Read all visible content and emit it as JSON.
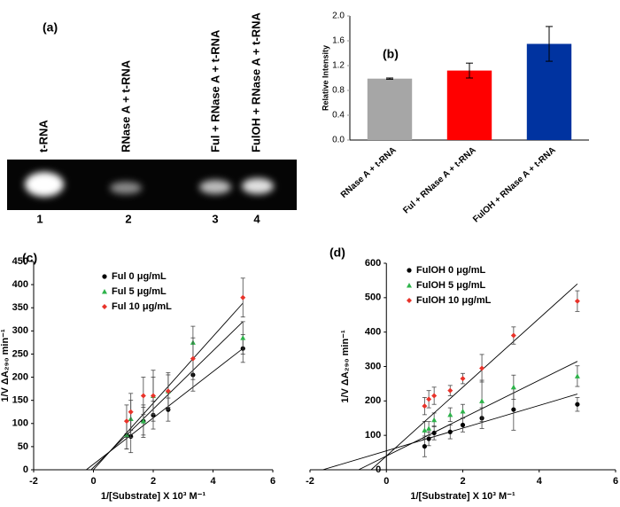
{
  "gel": {
    "label": "(a)",
    "lanes": [
      {
        "name": "t-RNA",
        "number": "1"
      },
      {
        "name": "RNase A + t-RNA",
        "number": "2"
      },
      {
        "name": "Ful + RNase A + t-RNA",
        "number": "3"
      },
      {
        "name": "FulOH + RNase A + t-RNA",
        "number": "4"
      }
    ]
  },
  "chart_data": [
    {
      "type": "bar",
      "label": "(b)",
      "ylabel": "Relative Intensity",
      "categories": [
        "RNase A + t-RNA",
        "Ful + RNase A + t-RNA",
        "FulOH + RNase A + t-RNA"
      ],
      "values": [
        0.99,
        1.12,
        1.55
      ],
      "errors": [
        0.01,
        0.12,
        0.28
      ],
      "colors": [
        "#a6a6a6",
        "#ff0000",
        "#0033a0"
      ],
      "ylim": [
        0,
        2
      ],
      "yticks": [
        {
          "value": 0,
          "label": "0.0"
        },
        0.4,
        0.8,
        1.2,
        1.6,
        {
          "value": 2,
          "label": "2.0"
        }
      ]
    },
    {
      "type": "scatter",
      "label": "(c)",
      "xlabel": "1/[Substrate] X 10³ M⁻¹",
      "ylabel": "1/V ΔA₂₉₀ min⁻¹",
      "xlim": [
        -2,
        6
      ],
      "xticks": [
        -2,
        0,
        2,
        4,
        6
      ],
      "ylim": [
        0,
        450
      ],
      "yticks": [
        0,
        50,
        100,
        150,
        200,
        250,
        300,
        350,
        400,
        450
      ],
      "y_axis_crosses": -2,
      "legend": "upper left",
      "x": [
        1.11,
        1.25,
        1.67,
        2.0,
        2.5,
        3.33,
        5.0
      ],
      "series": [
        {
          "name": "Ful 0 μg/mL",
          "color": "#000000",
          "marker": "circle",
          "values": [
            75,
            72,
            105,
            118,
            130,
            205,
            262
          ],
          "errors": [
            30,
            35,
            30,
            30,
            25,
            35,
            30
          ],
          "fit": {
            "slope": 50,
            "intercept": 12
          }
        },
        {
          "name": "Ful 5 μg/mL",
          "color": "#2db34a",
          "marker": "triangle",
          "values": [
            75,
            110,
            105,
            160,
            170,
            275,
            285
          ],
          "errors": [
            30,
            40,
            35,
            40,
            35,
            35,
            35
          ],
          "fit": {
            "slope": 63,
            "intercept": 5
          }
        },
        {
          "name": "Ful 10 μg/mL",
          "color": "#e8332a",
          "marker": "diamond",
          "values": [
            105,
            125,
            160,
            160,
            170,
            240,
            372
          ],
          "errors": [
            35,
            40,
            40,
            55,
            40,
            45,
            42
          ],
          "fit": {
            "slope": 72,
            "intercept": 0
          }
        }
      ]
    },
    {
      "type": "scatter",
      "label": "(d)",
      "xlabel": "1/[Substrate] X 10³ M⁻¹",
      "ylabel": "1/V ΔA₂₉₀ min⁻¹",
      "xlim": [
        -2,
        6
      ],
      "xticks": [
        -2,
        0,
        2,
        4,
        6
      ],
      "ylim": [
        0,
        600
      ],
      "yticks": [
        0,
        100,
        200,
        300,
        400,
        500,
        600
      ],
      "y_axis_crosses": 0,
      "legend": "upper left",
      "x": [
        1.0,
        1.11,
        1.25,
        1.67,
        2.0,
        2.5,
        3.33,
        5.0
      ],
      "series": [
        {
          "name": "FulOH 0 μg/mL",
          "color": "#000000",
          "marker": "circle",
          "values": [
            68,
            90,
            107,
            110,
            130,
            150,
            175,
            190
          ],
          "errors": [
            30,
            20,
            20,
            20,
            20,
            30,
            60,
            20
          ],
          "fit": {
            "slope": 33,
            "intercept": 55
          }
        },
        {
          "name": "FulOH 5 μg/mL",
          "color": "#2db34a",
          "marker": "triangle",
          "values": [
            115,
            120,
            145,
            160,
            170,
            200,
            240,
            272
          ],
          "errors": [
            25,
            20,
            20,
            20,
            20,
            60,
            35,
            30
          ],
          "fit": {
            "slope": 55,
            "intercept": 40
          }
        },
        {
          "name": "FulOH 10 μg/mL",
          "color": "#e8332a",
          "marker": "diamond",
          "values": [
            185,
            205,
            215,
            230,
            265,
            295,
            390,
            490
          ],
          "errors": [
            25,
            25,
            25,
            15,
            15,
            40,
            25,
            30
          ],
          "fit": {
            "slope": 100,
            "intercept": 40
          }
        }
      ]
    }
  ]
}
